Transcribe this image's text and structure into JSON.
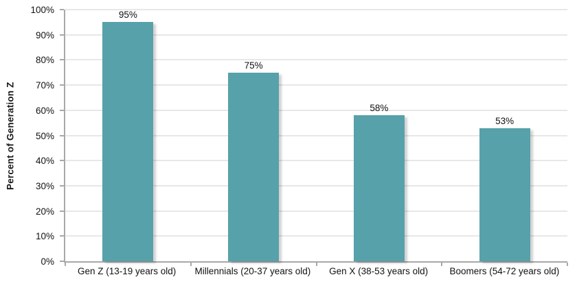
{
  "chart_data": {
    "type": "bar",
    "categories": [
      "Gen Z (13-19 years old)",
      "Millennials (20-37 years old)",
      "Gen X (38-53 years old)",
      "Boomers (54-72 years old)"
    ],
    "values": [
      95,
      75,
      58,
      53
    ],
    "value_labels": [
      "95%",
      "75%",
      "58%",
      "53%"
    ],
    "title": "",
    "xlabel": "",
    "ylabel": "Percent of Generation Z",
    "ylim": [
      0,
      100
    ],
    "ytick_step": 10,
    "ytick_labels": [
      "0%",
      "10%",
      "20%",
      "30%",
      "40%",
      "50%",
      "60%",
      "70%",
      "80%",
      "90%",
      "100%"
    ],
    "grid": true,
    "legend": false,
    "colors": {
      "bar": "#57A1AA",
      "gridline": "#E7E7E7",
      "axis": "#A8A8A8",
      "text": "#111111"
    }
  }
}
